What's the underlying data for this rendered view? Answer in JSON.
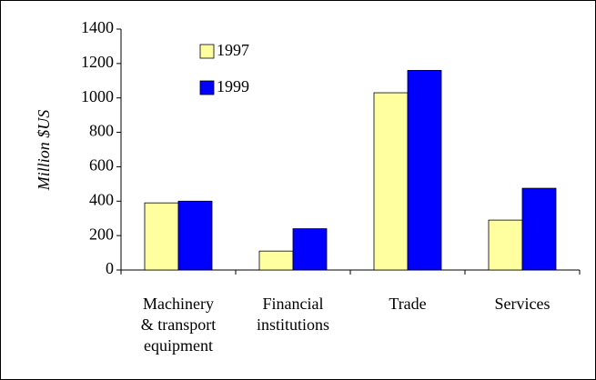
{
  "chart_data": {
    "type": "bar",
    "y_label": "Million $US",
    "categories": [
      "Machinery & transport equipment",
      "Financial institutions",
      "Trade",
      "Services"
    ],
    "series": [
      {
        "name": "1997",
        "color": "#ffffa0",
        "values": [
          390,
          110,
          1030,
          290
        ]
      },
      {
        "name": "1999",
        "color": "#0000ff",
        "values": [
          400,
          240,
          1160,
          475
        ]
      }
    ],
    "ylim": [
      0,
      1400
    ],
    "yticks": [
      0,
      200,
      400,
      600,
      800,
      1000,
      1200,
      1400
    ],
    "grid": false
  }
}
